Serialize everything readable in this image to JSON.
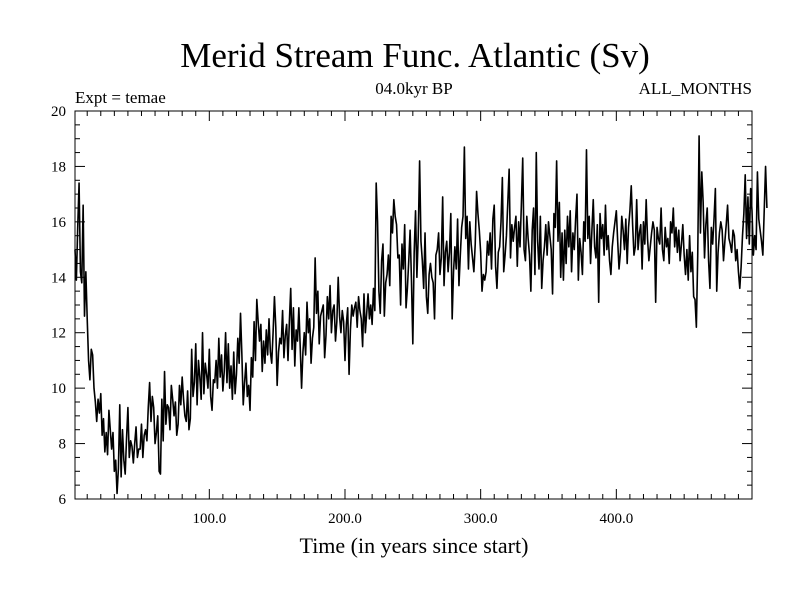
{
  "chart_data": {
    "type": "line",
    "title": "Merid Stream Func. Atlantic (Sv)",
    "subtitle_left": "Expt = temae",
    "subtitle_center": "04.0kyr BP",
    "subtitle_right": "ALL_MONTHS",
    "xlabel": "Time (in years since start)",
    "ylabel": "",
    "xlim": [
      1,
      500
    ],
    "ylim": [
      6,
      20
    ],
    "x_ticks": [
      100,
      200,
      300,
      400
    ],
    "x_tick_labels": [
      "100.0",
      "200.0",
      "300.0",
      "400.0"
    ],
    "y_ticks": [
      6,
      8,
      10,
      12,
      14,
      16,
      18,
      20
    ],
    "y_tick_labels": [
      "6",
      "8",
      "10",
      "12",
      "14",
      "16",
      "18",
      "20"
    ],
    "grid": false,
    "series": [
      {
        "name": "Merid Stream Func. Atlantic",
        "color": "#000000",
        "x_start": 1,
        "x_step": 1,
        "values": [
          15.0,
          13.9,
          15.8,
          17.4,
          14.2,
          13.8,
          16.6,
          12.6,
          14.2,
          12.5,
          11.0,
          10.3,
          11.4,
          11.2,
          10.0,
          9.5,
          8.8,
          9.6,
          9.1,
          9.8,
          8.3,
          8.9,
          7.7,
          8.4,
          7.6,
          9.2,
          8.5,
          7.8,
          8.4,
          7.0,
          7.4,
          6.2,
          7.1,
          9.4,
          6.8,
          8.5,
          7.4,
          6.9,
          8.2,
          9.3,
          7.5,
          8.1,
          7.9,
          7.3,
          8.0,
          8.6,
          7.5,
          7.8,
          7.8,
          8.7,
          7.5,
          8.3,
          8.5,
          8.1,
          9.3,
          10.2,
          8.8,
          9.7,
          9.3,
          8.0,
          8.4,
          9.0,
          7.0,
          6.9,
          9.6,
          8.1,
          10.6,
          8.7,
          9.4,
          9.3,
          8.5,
          10.1,
          9.6,
          9.0,
          9.5,
          8.3,
          8.7,
          10.1,
          9.4,
          10.4,
          9.6,
          9.0,
          8.8,
          9.9,
          8.5,
          8.9,
          11.4,
          9.7,
          10.2,
          11.6,
          9.4,
          11.0,
          10.4,
          9.6,
          12.0,
          9.8,
          10.9,
          10.5,
          10.0,
          11.4,
          9.7,
          9.2,
          10.3,
          10.2,
          11.0,
          10.0,
          11.8,
          10.4,
          11.2,
          9.9,
          10.6,
          12.0,
          10.2,
          11.6,
          10.0,
          10.8,
          9.6,
          11.3,
          9.8,
          10.5,
          11.8,
          10.9,
          12.7,
          11.2,
          9.4,
          10.2,
          10.9,
          9.7,
          10.1,
          9.2,
          11.1,
          10.4,
          12.4,
          11.0,
          13.2,
          12.4,
          11.7,
          12.3,
          10.6,
          11.7,
          10.9,
          12.1,
          11.2,
          12.5,
          11.3,
          10.9,
          12.0,
          13.3,
          12.2,
          10.1,
          11.3,
          11.8,
          11.6,
          12.8,
          11.1,
          11.9,
          12.3,
          11.0,
          12.4,
          13.6,
          11.4,
          12.9,
          10.8,
          12.1,
          11.7,
          12.9,
          11.5,
          10.0,
          11.3,
          12.0,
          11.2,
          13.1,
          12.0,
          12.5,
          10.9,
          11.8,
          12.2,
          14.7,
          12.7,
          13.5,
          11.6,
          12.6,
          12.8,
          13.0,
          11.1,
          11.9,
          13.3,
          12.5,
          13.7,
          12.0,
          12.8,
          13.0,
          11.7,
          12.4,
          14.0,
          12.6,
          12.0,
          12.8,
          12.4,
          11.0,
          12.3,
          12.9,
          10.5,
          12.1,
          13.0,
          12.6,
          12.9,
          13.1,
          12.2,
          13.3,
          12.8,
          12.5,
          11.5,
          13.4,
          12.0,
          12.7,
          13.4,
          12.5,
          13.0,
          12.3,
          13.6,
          12.8,
          17.4,
          16.0,
          13.5,
          12.7,
          14.6,
          15.2,
          12.6,
          13.8,
          14.1,
          14.8,
          13.7,
          16.2,
          15.6,
          16.8,
          16.2,
          15.9,
          14.7,
          14.8,
          13.0,
          15.2,
          14.3,
          15.9,
          12.9,
          13.6,
          14.6,
          15.7,
          13.9,
          11.6,
          14.9,
          16.4,
          14.0,
          15.5,
          18.2,
          15.3,
          14.6,
          13.6,
          15.6,
          13.3,
          12.7,
          14.1,
          14.5,
          14.0,
          13.8,
          12.5,
          14.8,
          15.0,
          15.6,
          14.1,
          14.7,
          16.9,
          13.7,
          14.9,
          15.3,
          14.2,
          14.9,
          16.3,
          12.5,
          14.2,
          15.1,
          14.3,
          16.1,
          13.7,
          14.8,
          15.8,
          16.2,
          18.7,
          15.4,
          16.2,
          14.3,
          16.0,
          15.2,
          14.7,
          14.2,
          15.2,
          17.1,
          16.3,
          15.7,
          14.9,
          13.5,
          14.1,
          13.9,
          14.2,
          15.3,
          14.8,
          15.6,
          14.3,
          16.1,
          16.6,
          14.4,
          13.6,
          14.9,
          15.1,
          16.0,
          17.6,
          14.2,
          14.8,
          15.5,
          16.7,
          17.9,
          14.7,
          15.9,
          15.3,
          15.8,
          16.2,
          14.4,
          16.0,
          15.1,
          16.6,
          18.3,
          15.0,
          14.6,
          16.2,
          15.4,
          14.8,
          13.5,
          15.7,
          16.5,
          14.1,
          18.5,
          15.3,
          14.3,
          16.2,
          13.6,
          14.6,
          15.1,
          15.9,
          14.8,
          16.0,
          15.5,
          15.0,
          13.4,
          16.3,
          15.8,
          18.2,
          15.3,
          16.7,
          14.0,
          15.6,
          13.9,
          15.7,
          14.5,
          16.2,
          15.1,
          16.4,
          14.2,
          15.6,
          15.0,
          16.1,
          17.0,
          13.9,
          15.4,
          14.9,
          14.1,
          16.0,
          15.3,
          18.6,
          15.4,
          16.2,
          14.5,
          15.7,
          16.8,
          15.1,
          14.7,
          15.9,
          13.1,
          16.3,
          15.4,
          15.9,
          14.8,
          16.6,
          15.0,
          15.5,
          14.6,
          14.1,
          15.1,
          15.6,
          16.0,
          16.4,
          15.3,
          14.3,
          14.9,
          16.2,
          15.7,
          15.0,
          16.1,
          14.5,
          15.8,
          16.4,
          17.3,
          15.9,
          14.8,
          15.1,
          16.8,
          15.0,
          15.6,
          15.9,
          14.3,
          16.0,
          15.2,
          16.8,
          15.4,
          14.6,
          15.1,
          15.6,
          16.0,
          15.7,
          13.1,
          15.8,
          15.4,
          15.2,
          16.5,
          15.0,
          14.6,
          15.8,
          15.1,
          15.4,
          14.5,
          16.0,
          15.6,
          16.5,
          15.1,
          15.8,
          14.9,
          15.7,
          14.6,
          15.2,
          15.9,
          14.8,
          14.1,
          15.0,
          13.9,
          15.5,
          14.2,
          14.9,
          13.3,
          13.2,
          12.2,
          14.8,
          19.1,
          15.6,
          17.8,
          16.7,
          14.7,
          15.9,
          16.5,
          14.6,
          13.6,
          15.8,
          15.2,
          16.1,
          17.2,
          13.5,
          14.9,
          15.6,
          16.0,
          15.7,
          14.6,
          15.3,
          15.9,
          16.6,
          15.4,
          15.2,
          14.9,
          15.7,
          15.5,
          14.6,
          15.0,
          14.2,
          13.6,
          14.4,
          15.5,
          16.3,
          17.7,
          15.4,
          16.9,
          15.2,
          17.2,
          16.4,
          14.8,
          15.5,
          15.0,
          17.8,
          16.1,
          15.7,
          15.3,
          14.8,
          16.4,
          18.0,
          16.5
        ]
      }
    ]
  }
}
